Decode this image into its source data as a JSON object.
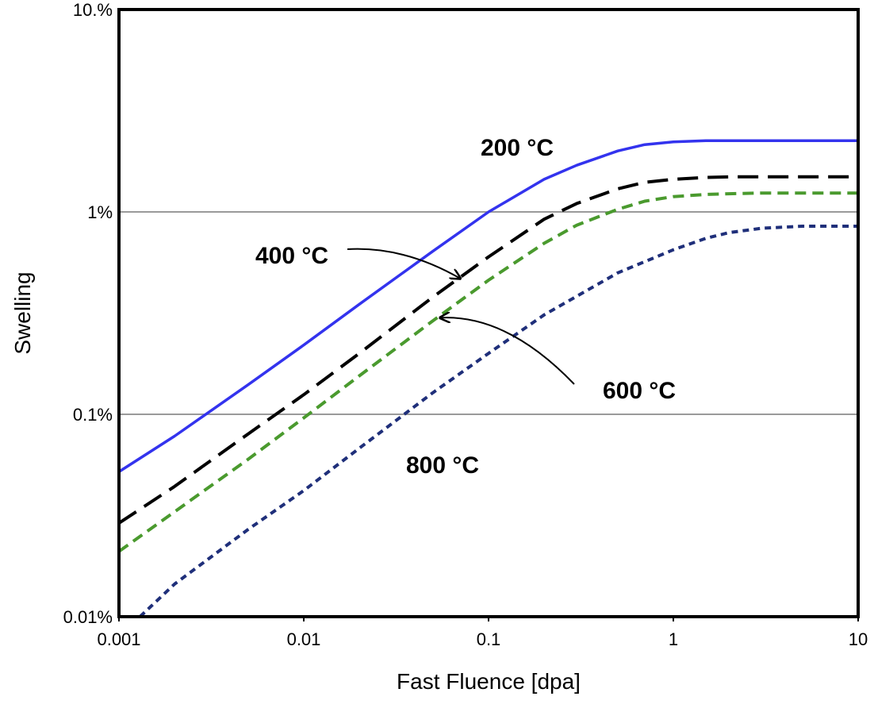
{
  "chart_data": {
    "type": "line",
    "title": "",
    "xlabel": "Fast Fluence [dpa]",
    "ylabel": "Swelling",
    "xscale": "log",
    "yscale": "log",
    "xlim": [
      0.001,
      10
    ],
    "ylim": [
      0.01,
      10
    ],
    "x_ticks": [
      0.001,
      0.01,
      0.1,
      1,
      10
    ],
    "x_tick_labels": [
      "0.001",
      "0.01",
      "0.1",
      "1",
      "10"
    ],
    "y_ticks": [
      0.01,
      0.1,
      1,
      10
    ],
    "y_tick_labels": [
      "0.01%",
      "0.1%",
      "1%",
      "10.%"
    ],
    "grid": "horizontal major lines",
    "legend": "none (direct labels on curves)",
    "series": [
      {
        "name": "200 °C",
        "color": "#3333ee",
        "dash": "solid",
        "x": [
          0.001,
          0.002,
          0.005,
          0.01,
          0.02,
          0.05,
          0.1,
          0.2,
          0.3,
          0.5,
          0.7,
          1,
          1.5,
          2,
          3,
          5,
          10
        ],
        "y": [
          0.052,
          0.078,
          0.14,
          0.22,
          0.35,
          0.64,
          1.0,
          1.45,
          1.7,
          2.0,
          2.15,
          2.22,
          2.25,
          2.25,
          2.25,
          2.25,
          2.25
        ]
      },
      {
        "name": "400 °C",
        "color": "#000000",
        "dash": "long-dash",
        "x": [
          0.001,
          0.002,
          0.005,
          0.01,
          0.02,
          0.05,
          0.1,
          0.2,
          0.3,
          0.5,
          0.7,
          1,
          1.5,
          2,
          3,
          5,
          10
        ],
        "y": [
          0.029,
          0.044,
          0.08,
          0.125,
          0.2,
          0.38,
          0.6,
          0.92,
          1.1,
          1.3,
          1.4,
          1.45,
          1.48,
          1.49,
          1.49,
          1.49,
          1.49
        ]
      },
      {
        "name": "600 °C",
        "color": "#4a9a2e",
        "dash": "medium-dash",
        "x": [
          0.001,
          0.002,
          0.005,
          0.01,
          0.02,
          0.05,
          0.1,
          0.2,
          0.3,
          0.5,
          0.7,
          1,
          1.5,
          2,
          3,
          5,
          10
        ],
        "y": [
          0.021,
          0.033,
          0.06,
          0.096,
          0.155,
          0.29,
          0.46,
          0.7,
          0.86,
          1.03,
          1.13,
          1.19,
          1.22,
          1.23,
          1.24,
          1.24,
          1.24
        ]
      },
      {
        "name": "800 °C",
        "color": "#1f2f7a",
        "dash": "short-dash",
        "x": [
          0.0013,
          0.002,
          0.005,
          0.01,
          0.02,
          0.05,
          0.1,
          0.2,
          0.5,
          1,
          1.5,
          2,
          3,
          5,
          10
        ],
        "y": [
          0.01,
          0.0145,
          0.027,
          0.042,
          0.068,
          0.128,
          0.2,
          0.31,
          0.5,
          0.65,
          0.74,
          0.79,
          0.83,
          0.85,
          0.85
        ]
      }
    ],
    "annotations": [
      {
        "text": "200 °C",
        "target_series": "200 °C",
        "arrow": false
      },
      {
        "text": "400 °C",
        "target_series": "400 °C",
        "arrow": true,
        "arrow_to": [
          0.07,
          0.47
        ]
      },
      {
        "text": "600 °C",
        "target_series": "600 °C",
        "arrow": true,
        "arrow_to": [
          0.055,
          0.3
        ]
      },
      {
        "text": "800 °C",
        "target_series": "800 °C",
        "arrow": false
      }
    ]
  }
}
